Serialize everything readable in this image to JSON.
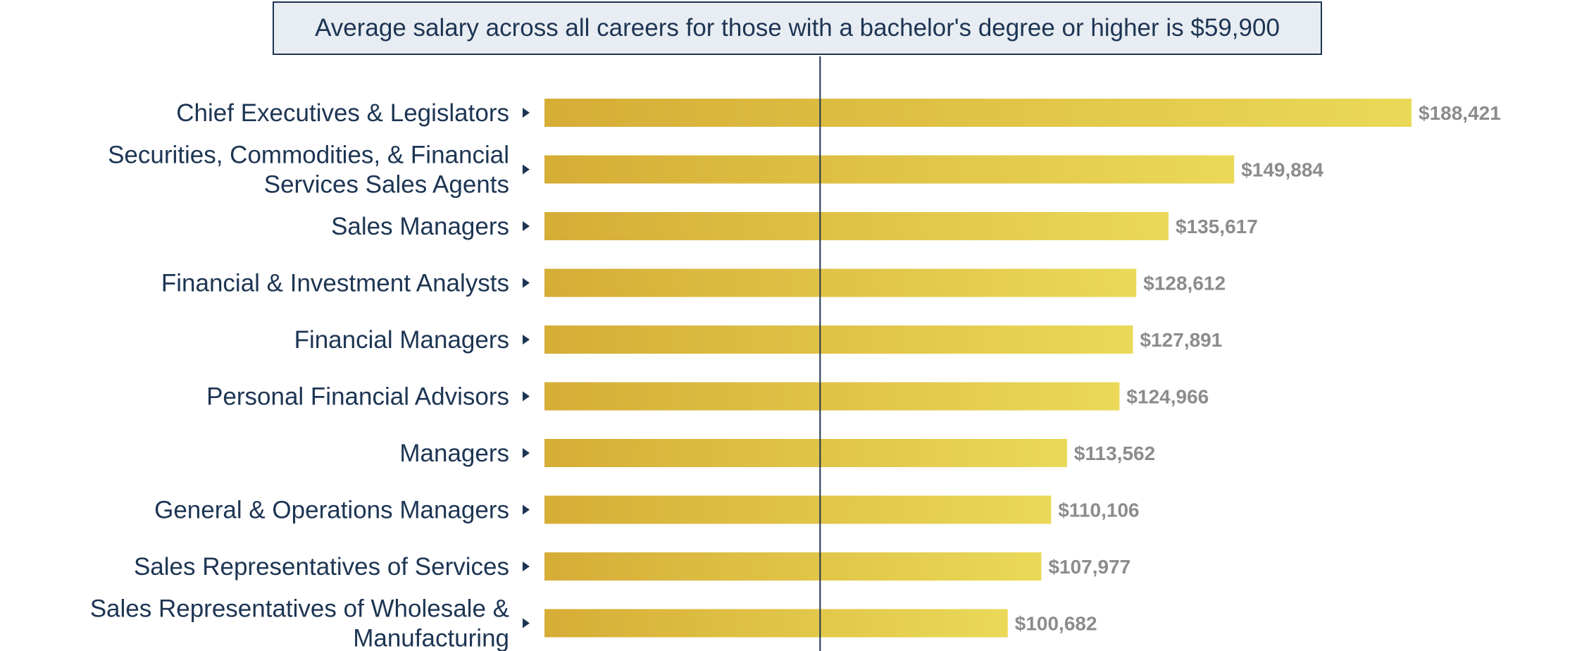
{
  "chart_data": {
    "type": "bar",
    "orientation": "horizontal",
    "annotation": "Average salary across all careers for those with a bachelor's degree or higher is $59,900",
    "reference_line": 59900,
    "categories": [
      [
        "Chief Executives & Legislators"
      ],
      [
        "Securities, Commodities, & Financial",
        "Services Sales Agents"
      ],
      [
        "Sales Managers"
      ],
      [
        "Financial & Investment Analysts"
      ],
      [
        "Financial Managers"
      ],
      [
        "Personal Financial Advisors"
      ],
      [
        "Managers"
      ],
      [
        "General & Operations Managers"
      ],
      [
        "Sales Representatives of Services"
      ],
      [
        "Sales Representatives of Wholesale &",
        "Manufacturing"
      ]
    ],
    "values": [
      188421,
      149884,
      135617,
      128612,
      127891,
      124966,
      113562,
      110106,
      107977,
      100682
    ],
    "value_labels": [
      "$188,421",
      "$149,884",
      "$135,617",
      "$128,612",
      "$127,891",
      "$124,966",
      "$113,562",
      "$110,106",
      "$107,977",
      "$100,682"
    ],
    "colors": {
      "bar_start": "#d6ad36",
      "bar_end": "#ead958",
      "category_text": "#1d3553",
      "value_text": "#8c8c8c",
      "reference_line": "#1d3553"
    },
    "grid": false,
    "legend": "none"
  }
}
